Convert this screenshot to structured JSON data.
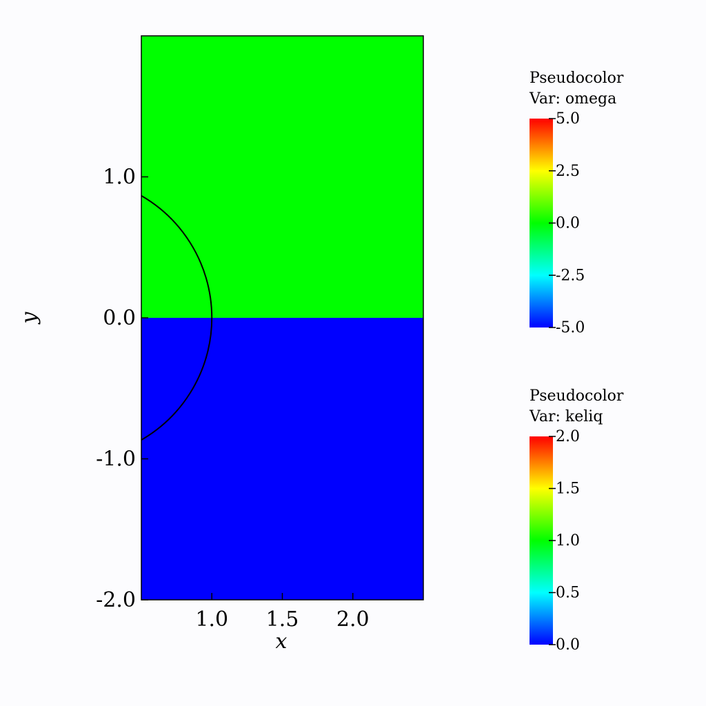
{
  "chart_data": {
    "type": "pseudocolor",
    "xlabel": "x",
    "ylabel": "y",
    "xlim": [
      0.5,
      2.5
    ],
    "ylim": [
      -2,
      2
    ],
    "xticks": [
      {
        "value": 1,
        "label": "1.0"
      },
      {
        "value": 1.5,
        "label": "1.5"
      },
      {
        "value": 2,
        "label": "2.0"
      }
    ],
    "yticks": [
      {
        "value": -2,
        "label": "-2.0"
      },
      {
        "value": -1,
        "label": "-1.0"
      },
      {
        "value": 0,
        "label": "0.0"
      },
      {
        "value": 1,
        "label": "1.0"
      }
    ],
    "colormap": [
      "#0000ff",
      "#00ffff",
      "#00ff00",
      "#ffff00",
      "#ff0000"
    ],
    "regions": [
      {
        "ylim": [
          0,
          2
        ],
        "value": 0
      },
      {
        "ylim": [
          -2,
          0
        ],
        "value": -5
      }
    ],
    "contour": {
      "radius": 1
    },
    "colorbars": [
      {
        "title": "Pseudocolor",
        "var": "Var: omega",
        "lim": [
          -5,
          5
        ],
        "ticks": [
          {
            "value": 5,
            "label": "5.0"
          },
          {
            "value": 2.5,
            "label": "2.5"
          },
          {
            "value": 0,
            "label": "0.0"
          },
          {
            "value": -2.5,
            "label": "-2.5"
          },
          {
            "value": -5,
            "label": "-5.0"
          }
        ]
      },
      {
        "title": "Pseudocolor",
        "var": "Var: keliq",
        "lim": [
          0,
          2
        ],
        "ticks": [
          {
            "value": 2,
            "label": "2.0"
          },
          {
            "value": 1.5,
            "label": "1.5"
          },
          {
            "value": 1,
            "label": "1.0"
          },
          {
            "value": 0.5,
            "label": "0.5"
          },
          {
            "value": 0,
            "label": "0.0"
          }
        ]
      }
    ]
  }
}
